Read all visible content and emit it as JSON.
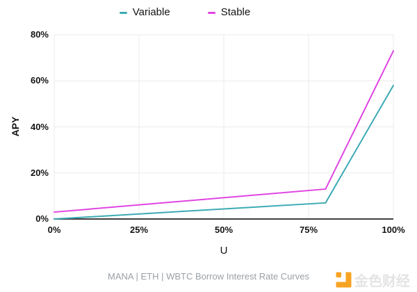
{
  "chart_data": {
    "type": "line",
    "title": "",
    "xlabel": "U",
    "ylabel": "APY",
    "xlim": [
      0,
      100
    ],
    "ylim": [
      0,
      80
    ],
    "x_tick_labels": [
      "0%",
      "25%",
      "50%",
      "75%",
      "100%"
    ],
    "y_tick_labels": [
      "0%",
      "20%",
      "40%",
      "60%",
      "80%"
    ],
    "grid": true,
    "legend_position": "top-center",
    "series": [
      {
        "name": "Variable",
        "color": "#3caab4",
        "x": [
          0,
          80,
          100
        ],
        "y": [
          0,
          7,
          58
        ]
      },
      {
        "name": "Stable",
        "color": "#e044e2",
        "x": [
          0,
          80,
          100
        ],
        "y": [
          3,
          13,
          73
        ]
      }
    ]
  },
  "caption": "MANA | ETH | WBTC Borrow Interest Rate Curves",
  "watermark": {
    "brand": "金色财经",
    "icon_color": "#f7a323",
    "text_color": "#e4e4e4"
  },
  "colors": {
    "grid": "#ebebeb",
    "axis": "#3f3f3f",
    "tick_text": "#141414",
    "caption_text": "#9aa0a6"
  }
}
